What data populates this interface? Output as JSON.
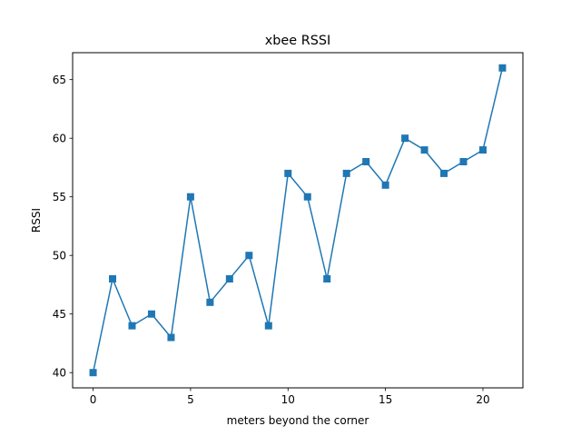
{
  "chart_data": {
    "type": "line",
    "title": "xbee RSSI",
    "xlabel": "meters beyond the corner",
    "ylabel": "RSSI",
    "xlim": [
      -1.05,
      22.05
    ],
    "ylim": [
      38.7,
      67.3
    ],
    "xticks": [
      0,
      5,
      10,
      15,
      20
    ],
    "yticks": [
      40,
      45,
      50,
      55,
      60,
      65
    ],
    "marker": "square",
    "grid": false,
    "series": [
      {
        "color": "#1f77b4",
        "x": [
          0,
          1,
          2,
          3,
          4,
          5,
          6,
          7,
          8,
          9,
          10,
          11,
          12,
          13,
          14,
          15,
          16,
          17,
          18,
          19,
          20,
          21
        ],
        "y": [
          40,
          48,
          44,
          45,
          43,
          55,
          46,
          48,
          50,
          44,
          57,
          55,
          48,
          57,
          58,
          56,
          60,
          59,
          57,
          58,
          59,
          66
        ]
      }
    ]
  }
}
